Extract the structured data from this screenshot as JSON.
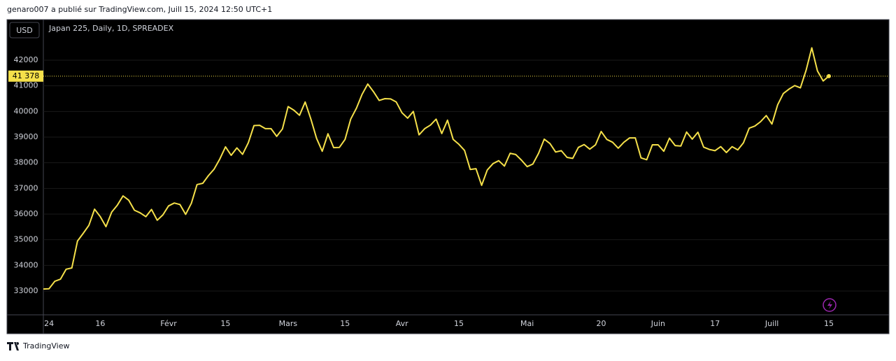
{
  "header": "genaro007 a publié sur TradingView.com, Juill 15, 2024 12:50 UTC+1",
  "footer": "TradingView",
  "currency": "USD",
  "chart_data": {
    "type": "line",
    "title": "Japan 225, Daily, 1D, SPREADEX",
    "categories": [
      null,
      "24",
      null,
      null,
      null,
      null,
      null,
      null,
      null,
      null,
      "16",
      null,
      null,
      null,
      null,
      null,
      null,
      null,
      null,
      null,
      null,
      null,
      "Févr",
      null,
      null,
      null,
      null,
      null,
      null,
      null,
      null,
      null,
      "15",
      null,
      null,
      null,
      null,
      null,
      null,
      null,
      null,
      null,
      null,
      "Mars",
      null,
      null,
      null,
      null,
      null,
      null,
      null,
      null,
      null,
      "15",
      null,
      null,
      null,
      null,
      null,
      null,
      null,
      null,
      null,
      "Avr",
      null,
      null,
      null,
      null,
      null,
      null,
      null,
      null,
      null,
      "15",
      null,
      null,
      null,
      null,
      null,
      null,
      null,
      null,
      null,
      null,
      null,
      "Mai",
      null,
      null,
      null,
      null,
      null,
      null,
      null,
      null,
      null,
      null,
      null,
      null,
      "20",
      null,
      null,
      null,
      null,
      null,
      null,
      null,
      null,
      null,
      "Juin",
      null,
      null,
      null,
      null,
      null,
      null,
      null,
      null,
      null,
      "17",
      null,
      null,
      null,
      null,
      null,
      null,
      null,
      null,
      null,
      "Juill",
      null,
      null,
      null,
      null,
      null,
      null,
      null,
      null,
      null,
      "15"
    ],
    "values": [
      33080,
      33090,
      33380,
      33460,
      33850,
      33900,
      34950,
      35250,
      35560,
      36190,
      35900,
      35510,
      36080,
      36350,
      36710,
      36540,
      36150,
      36050,
      35900,
      36180,
      35760,
      35970,
      36320,
      36430,
      36370,
      35990,
      36420,
      37150,
      37200,
      37500,
      37750,
      38150,
      38620,
      38290,
      38580,
      38330,
      38780,
      39450,
      39460,
      39330,
      39330,
      39030,
      39320,
      40190,
      40050,
      39850,
      40370,
      39700,
      38950,
      38450,
      39130,
      38590,
      38600,
      38910,
      39700,
      40130,
      40670,
      41070,
      40770,
      40430,
      40500,
      40490,
      40370,
      39950,
      39740,
      40000,
      39090,
      39330,
      39470,
      39700,
      39140,
      39660,
      38910,
      38720,
      38480,
      37740,
      37770,
      37120,
      37720,
      37970,
      38080,
      37870,
      38370,
      38320,
      38100,
      37850,
      37950,
      38370,
      38920,
      38750,
      38420,
      38470,
      38210,
      38170,
      38600,
      38710,
      38530,
      38700,
      39220,
      38910,
      38800,
      38570,
      38800,
      38970,
      38970,
      38190,
      38120,
      38700,
      38700,
      38450,
      38960,
      38670,
      38650,
      39200,
      38920,
      39190,
      38610,
      38520,
      38470,
      38630,
      38400,
      38630,
      38500,
      38780,
      39350,
      39430,
      39600,
      39840,
      39510,
      40260,
      40700,
      40870,
      41010,
      40920,
      41600,
      42480,
      41580,
      41190,
      41378
    ],
    "color": "#f5e04a",
    "ylim": [
      32073,
      43582
    ],
    "yticks": [
      33000,
      34000,
      35000,
      36000,
      37000,
      38000,
      39000,
      40000,
      41000,
      42000
    ],
    "grid": true,
    "price_line": {
      "value": 41378,
      "label": "41 378"
    }
  }
}
